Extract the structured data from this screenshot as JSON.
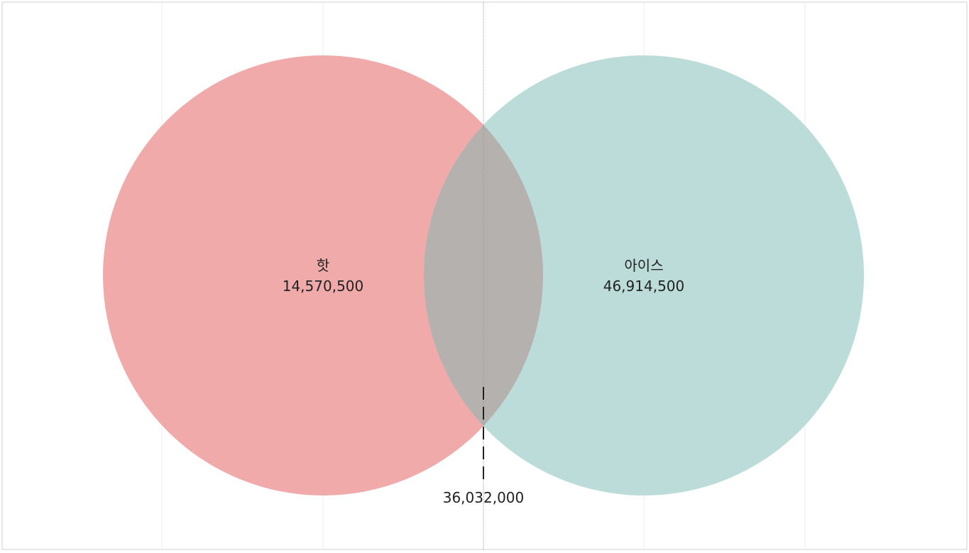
{
  "chart_data": {
    "type": "venn",
    "sets": [
      {
        "label": "핫",
        "value": "14,570,500",
        "color": "#f0aaaa"
      },
      {
        "label": "아이스",
        "value": "46,914,500",
        "color": "#bbdcd8"
      }
    ],
    "intersection": {
      "value": "36,032,000",
      "color": "#b5b1ae"
    },
    "grid": true,
    "legend": "none"
  }
}
